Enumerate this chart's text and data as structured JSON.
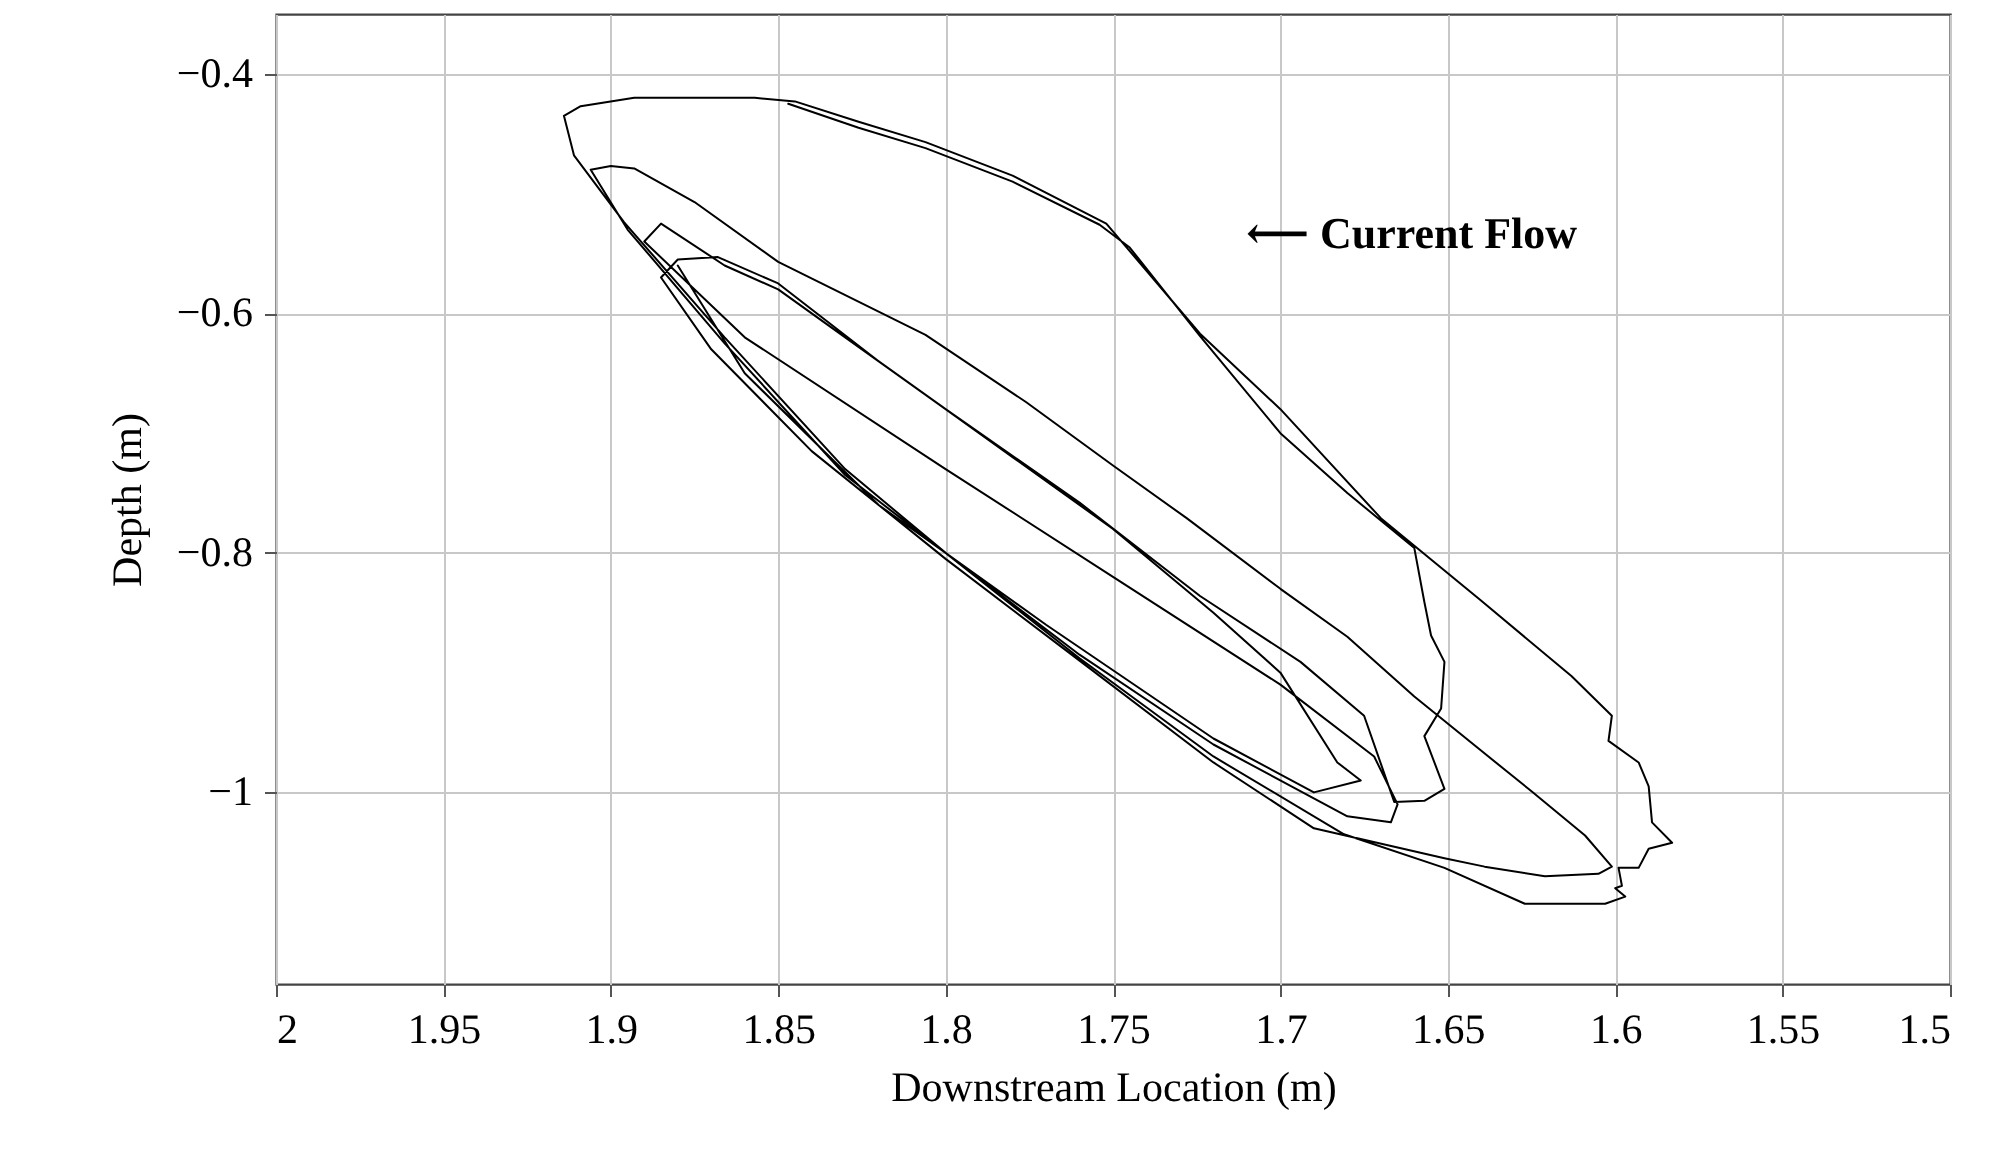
{
  "chart_data": {
    "type": "line",
    "xlabel": "Downstream Location (m)",
    "ylabel": "Depth (m)",
    "annotations": [
      "⟵ Current Flow"
    ],
    "xlim": [
      2,
      1.5
    ],
    "xticks": [
      2,
      1.95,
      1.9,
      1.85,
      1.8,
      1.75,
      1.7,
      1.65,
      1.6,
      1.55,
      1.5
    ],
    "ylim": [
      -1.16,
      -0.35
    ],
    "yticks": [
      -1,
      -0.8,
      -0.6,
      -0.4
    ],
    "grid": true,
    "x": [
      1.847,
      1.826,
      1.806,
      1.78,
      1.754,
      1.745,
      1.724,
      1.7,
      1.68,
      1.66,
      1.657,
      1.655,
      1.651,
      1.652,
      1.657,
      1.651,
      1.657,
      1.666,
      1.675,
      1.694,
      1.724,
      1.76,
      1.8,
      1.83,
      1.85,
      1.866,
      1.885,
      1.89,
      1.86,
      1.8,
      1.75,
      1.7,
      1.672,
      1.665,
      1.667,
      1.68,
      1.72,
      1.76,
      1.8,
      1.83,
      1.866,
      1.896,
      1.911,
      1.914,
      1.909,
      1.893,
      1.857,
      1.845,
      1.826,
      1.806,
      1.78,
      1.752,
      1.724,
      1.7,
      1.67,
      1.64,
      1.613,
      1.601,
      1.602,
      1.593,
      1.59,
      1.589,
      1.583,
      1.59,
      1.593,
      1.599,
      1.598,
      1.6,
      1.597,
      1.603,
      1.627,
      1.651,
      1.681,
      1.72,
      1.76,
      1.8,
      1.83,
      1.866,
      1.895,
      1.906,
      1.9,
      1.893,
      1.875,
      1.85,
      1.806,
      1.776,
      1.75,
      1.728,
      1.7,
      1.68,
      1.66,
      1.641,
      1.625,
      1.609,
      1.601,
      1.605,
      1.621,
      1.639,
      1.651,
      1.69,
      1.72,
      1.76,
      1.8,
      1.84,
      1.87,
      1.885,
      1.88,
      1.868,
      1.85,
      1.82,
      1.78,
      1.75,
      1.72,
      1.7,
      1.683,
      1.676,
      1.69,
      1.72,
      1.77,
      1.82,
      1.86,
      1.88
    ],
    "series": [
      {
        "color": "#000000",
        "values": [
          -0.425,
          -0.445,
          -0.462,
          -0.49,
          -0.526,
          -0.545,
          -0.619,
          -0.7,
          -0.75,
          -0.796,
          -0.841,
          -0.869,
          -0.891,
          -0.93,
          -0.953,
          -0.997,
          -1.007,
          -1.008,
          -0.936,
          -0.891,
          -0.836,
          -0.758,
          -0.68,
          -0.62,
          -0.58,
          -0.56,
          -0.525,
          -0.54,
          -0.62,
          -0.73,
          -0.82,
          -0.91,
          -0.97,
          -1.01,
          -1.025,
          -1.02,
          -0.96,
          -0.885,
          -0.8,
          -0.73,
          -0.62,
          -0.524,
          -0.468,
          -0.435,
          -0.427,
          -0.42,
          -0.42,
          -0.423,
          -0.44,
          -0.457,
          -0.485,
          -0.525,
          -0.617,
          -0.68,
          -0.771,
          -0.84,
          -0.903,
          -0.936,
          -0.957,
          -0.975,
          -0.995,
          -1.025,
          -1.042,
          -1.047,
          -1.063,
          -1.063,
          -1.078,
          -1.08,
          -1.087,
          -1.093,
          -1.093,
          -1.063,
          -1.035,
          -0.97,
          -0.888,
          -0.8,
          -0.735,
          -0.625,
          -0.53,
          -0.48,
          -0.477,
          -0.479,
          -0.507,
          -0.557,
          -0.618,
          -0.674,
          -0.727,
          -0.771,
          -0.83,
          -0.87,
          -0.92,
          -0.963,
          -0.999,
          -1.036,
          -1.062,
          -1.068,
          -1.07,
          -1.062,
          -1.055,
          -1.03,
          -0.975,
          -0.89,
          -0.805,
          -0.715,
          -0.63,
          -0.57,
          -0.555,
          -0.553,
          -0.575,
          -0.64,
          -0.72,
          -0.78,
          -0.85,
          -0.9,
          -0.975,
          -0.99,
          -1.0,
          -0.955,
          -0.86,
          -0.76,
          -0.65,
          -0.56
        ]
      }
    ]
  }
}
